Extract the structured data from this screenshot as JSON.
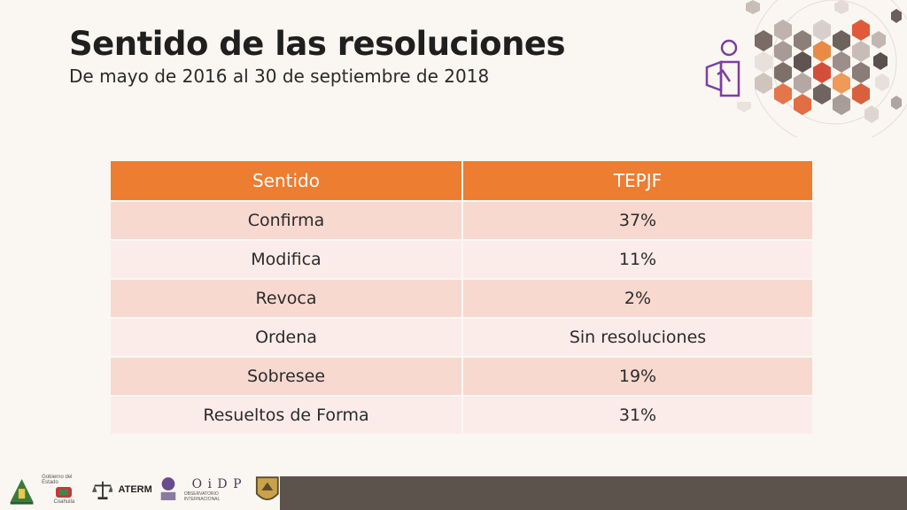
{
  "slide": {
    "title": "Sentido de las resoluciones",
    "subtitle": "De mayo de 2016 al 30 de septiembre de 2018"
  },
  "table": {
    "headers": [
      "Sentido",
      "TEPJF"
    ],
    "rows": [
      [
        "Confirma",
        "37%"
      ],
      [
        "Modifica",
        "11%"
      ],
      [
        "Revoca",
        "2%"
      ],
      [
        "Ordena",
        "Sin resoluciones"
      ],
      [
        "Sobresee",
        "19%"
      ],
      [
        "Resueltos de Forma",
        "31%"
      ]
    ]
  },
  "footer": {
    "logos": {
      "gobierno": "Gobierno del Estado",
      "coahuila": "Coahuila",
      "aterm": "ATERM",
      "oidp": "O i D P",
      "observatorio": "OBSERVATORIO INTERNACIONAL"
    }
  },
  "colors": {
    "accent": "#ed7d31",
    "row_odd": "#f8d9d0",
    "row_even": "#fbecea",
    "icon": "#7b3fa0",
    "footer_bar": "#5c544c"
  }
}
